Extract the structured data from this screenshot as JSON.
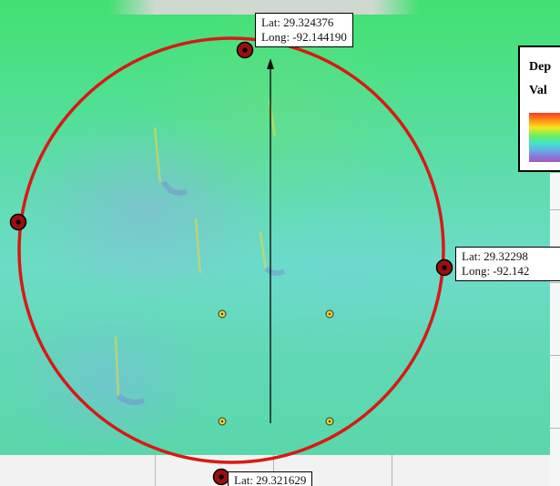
{
  "map": {
    "colors": {
      "circle": "#d61a14",
      "marker_fill": "#9a1010",
      "pin": "#e8d62a",
      "arrow": "#111111",
      "ramp_high": "#ff3a1f",
      "ramp_mid": "#43e2c8",
      "ramp_low": "#a05db8"
    },
    "labels": {
      "top": {
        "lat": "Lat: 29.324376",
        "long": "Long: -92.144190"
      },
      "right": {
        "lat": "Lat: 29.32298",
        "long": "Long: -92.142"
      },
      "bottom": {
        "lat": "Lat: 29.321629"
      }
    },
    "legend": {
      "title": "Dep",
      "subtitle": "Val"
    },
    "markers": [
      "north-marker",
      "east-marker",
      "south-marker",
      "west-marker"
    ],
    "pins": [
      "pin-nw",
      "pin-ne",
      "pin-sw",
      "pin-se"
    ],
    "icons": {
      "north_arrow": "arrow-up-icon",
      "marker": "target-marker-icon",
      "pin": "sample-point-icon"
    }
  }
}
